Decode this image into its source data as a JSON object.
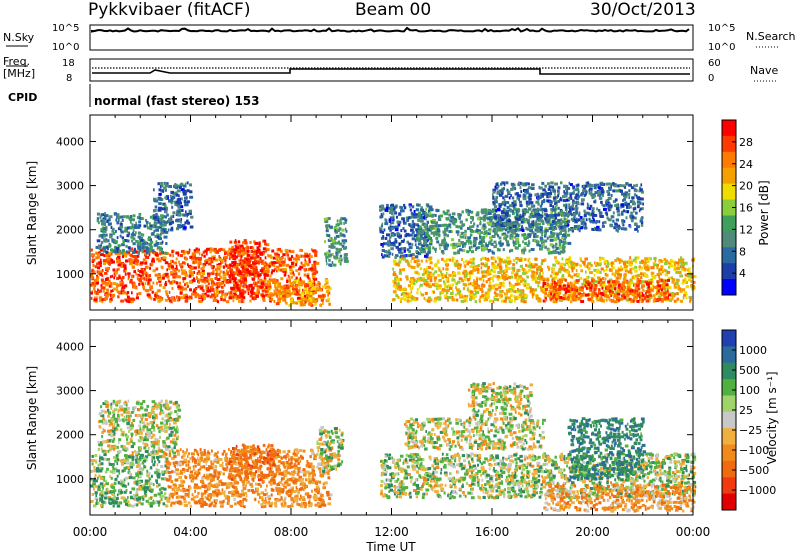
{
  "header": {
    "station": "Pykkvibaer (fitACF)",
    "beam": "Beam 00",
    "date": "30/Oct/2013"
  },
  "panels": {
    "nsky": {
      "label": "N.Sky",
      "tick_top": "10^5",
      "tick_bottom": "10^0",
      "right_label": "N.Search",
      "right_tick_top": "10^5",
      "right_tick_bottom": "10^0"
    },
    "freq": {
      "label_1": "Freq.",
      "label_2": "[MHz]",
      "tick_top": "18",
      "tick_bottom": "8",
      "right_label": "Nave",
      "right_tick_top": "60",
      "right_tick_bottom": "0"
    },
    "cpid": {
      "label": "CPID",
      "text": "normal (fast stereo) 153"
    }
  },
  "colorbars": {
    "power": {
      "label": "Power [dB]",
      "ticks": [
        "28",
        "24",
        "20",
        "16",
        "12",
        "8",
        "4"
      ],
      "colors": [
        "#ff0000",
        "#ff3a00",
        "#ff7a00",
        "#f4a000",
        "#f0dc00",
        "#8ccd3c",
        "#3ea05a",
        "#4f8a7a",
        "#2a6aa0",
        "#1c3ea8",
        "#0000ff"
      ]
    },
    "velocity": {
      "label": "Velocity [m s⁻¹]",
      "ticks": [
        "1000",
        "500",
        "100",
        "25",
        "−25",
        "−100",
        "−500",
        "−1000"
      ],
      "colors": [
        "#2040b0",
        "#2a6a9c",
        "#2e8a60",
        "#50b040",
        "#a0d46a",
        "#c8c8c8",
        "#f0b040",
        "#f08a1a",
        "#f06a10",
        "#f03a10",
        "#e00000"
      ]
    }
  },
  "chart_data": [
    {
      "type": "heatmap",
      "name": "Power",
      "ylabel": "Slant Range [km]",
      "yticks": [
        1000,
        2000,
        3000,
        4000
      ],
      "ylim": [
        180,
        4600
      ],
      "xlim": [
        0,
        24
      ],
      "xticks": [
        "00:00",
        "04:00",
        "08:00",
        "12:00",
        "16:00",
        "20:00",
        "00:00"
      ],
      "xlabel": "",
      "colorbar": "Power [dB]",
      "blobs": [
        {
          "t": [
            0.0,
            9.0
          ],
          "r": [
            400,
            1600
          ],
          "v": 26
        },
        {
          "t": [
            0.2,
            3.0
          ],
          "r": [
            1500,
            2400
          ],
          "v": 8
        },
        {
          "t": [
            2.5,
            4.0
          ],
          "r": [
            2000,
            3100
          ],
          "v": 6
        },
        {
          "t": [
            5.5,
            7.0
          ],
          "r": [
            500,
            1800
          ],
          "v": 28
        },
        {
          "t": [
            7.0,
            9.5
          ],
          "r": [
            300,
            900
          ],
          "v": 22
        },
        {
          "t": [
            9.3,
            10.2
          ],
          "r": [
            1200,
            2300
          ],
          "v": 10
        },
        {
          "t": [
            11.5,
            13.5
          ],
          "r": [
            1400,
            2600
          ],
          "v": 6
        },
        {
          "t": [
            12.0,
            24.0
          ],
          "r": [
            400,
            1400
          ],
          "v": 20
        },
        {
          "t": [
            13.0,
            19.0
          ],
          "r": [
            1500,
            2500
          ],
          "v": 10
        },
        {
          "t": [
            16.0,
            22.0
          ],
          "r": [
            2000,
            3100
          ],
          "v": 6
        },
        {
          "t": [
            18.0,
            23.0
          ],
          "r": [
            400,
            900
          ],
          "v": 26
        }
      ]
    },
    {
      "type": "heatmap",
      "name": "Velocity",
      "ylabel": "Slant Range [km]",
      "yticks": [
        1000,
        2000,
        3000,
        4000
      ],
      "ylim": [
        180,
        4600
      ],
      "xlim": [
        0,
        24
      ],
      "xticks": [
        "00:00",
        "04:00",
        "08:00",
        "12:00",
        "16:00",
        "20:00",
        "00:00"
      ],
      "xlabel": "Time UT",
      "colorbar": "Velocity [m s⁻¹]",
      "blobs": [
        {
          "t": [
            0.0,
            3.0
          ],
          "r": [
            400,
            1600
          ],
          "v": 100
        },
        {
          "t": [
            0.3,
            3.5
          ],
          "r": [
            1600,
            2800
          ],
          "v": 0
        },
        {
          "t": [
            3.0,
            9.5
          ],
          "r": [
            400,
            1700
          ],
          "v": -300
        },
        {
          "t": [
            5.5,
            7.5
          ],
          "r": [
            1000,
            1800
          ],
          "v": -500
        },
        {
          "t": [
            9.0,
            10.0
          ],
          "r": [
            1200,
            2200
          ],
          "v": 0
        },
        {
          "t": [
            11.5,
            24.0
          ],
          "r": [
            600,
            1600
          ],
          "v": 50
        },
        {
          "t": [
            12.5,
            18.0
          ],
          "r": [
            1700,
            2400
          ],
          "v": 0
        },
        {
          "t": [
            15.0,
            17.5
          ],
          "r": [
            2400,
            3200
          ],
          "v": 0
        },
        {
          "t": [
            18.0,
            24.0
          ],
          "r": [
            300,
            900
          ],
          "v": -250
        },
        {
          "t": [
            19.0,
            22.0
          ],
          "r": [
            1000,
            2400
          ],
          "v": 400
        }
      ]
    }
  ]
}
